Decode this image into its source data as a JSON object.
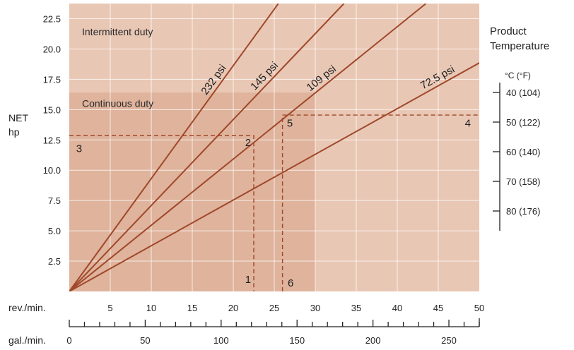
{
  "chart_data": {
    "type": "line",
    "title": "",
    "ylabel_line1": "NET",
    "ylabel_line2": "hp",
    "xlabel_rev": "rev./min.",
    "xlabel_gal": "gal./min.",
    "xlim": [
      0,
      50
    ],
    "ylim": [
      0,
      23.75
    ],
    "x_ticks": [
      "5",
      "10",
      "15",
      "20",
      "25",
      "30",
      "35",
      "40",
      "45",
      "50"
    ],
    "y_ticks": [
      "2.5",
      "5.0",
      "7.5",
      "10.0",
      "12.5",
      "15.0",
      "17.5",
      "20.0",
      "22.5"
    ],
    "gal_ticks": [
      "0",
      "50",
      "100",
      "150",
      "200",
      "250"
    ],
    "gal_per_rev": 5.4,
    "grid": true,
    "regions": [
      {
        "label": "Intermittent duty",
        "x": [
          0,
          50
        ],
        "y": [
          0,
          23.75
        ],
        "color": "#e9c7b5"
      },
      {
        "label": "Continuous duty",
        "x": [
          0,
          30
        ],
        "y": [
          0,
          16.4
        ],
        "color": "#dfb39c"
      }
    ],
    "series": [
      {
        "name": "232 psi",
        "x": [
          0,
          25.5
        ],
        "y": [
          0,
          23.75
        ]
      },
      {
        "name": "145 psi",
        "x": [
          0,
          33.5
        ],
        "y": [
          0,
          23.75
        ]
      },
      {
        "name": "109 psi",
        "x": [
          0,
          43.5
        ],
        "y": [
          0,
          23.75
        ]
      },
      {
        "name": "72.5 psi",
        "x": [
          0,
          63
        ],
        "y": [
          0,
          23.75
        ]
      }
    ],
    "series_color": "#a0482a",
    "guides": {
      "path_a": {
        "x": [
          0,
          22.5,
          22.5
        ],
        "y": [
          12.85,
          12.85,
          0
        ]
      },
      "path_b": {
        "x": [
          26,
          26,
          50
        ],
        "y": [
          0,
          14.55,
          14.55
        ]
      }
    },
    "point_labels": [
      {
        "text": "1",
        "x": 21.8,
        "y": 0.7
      },
      {
        "text": "2",
        "x": 21.8,
        "y": 12.0
      },
      {
        "text": "3",
        "x": 1.2,
        "y": 11.5
      },
      {
        "text": "4",
        "x": 48.6,
        "y": 13.6
      },
      {
        "text": "5",
        "x": 26.9,
        "y": 13.6
      },
      {
        "text": "6",
        "x": 27.0,
        "y": 0.4
      }
    ],
    "temperature_scale": {
      "title_line1": "Product",
      "title_line2": "Temperature",
      "unit": "°C  (°F)",
      "labels": [
        "40 (104)",
        "50 (122)",
        "60 (140)",
        "70 (158)",
        "80 (176)"
      ]
    }
  }
}
